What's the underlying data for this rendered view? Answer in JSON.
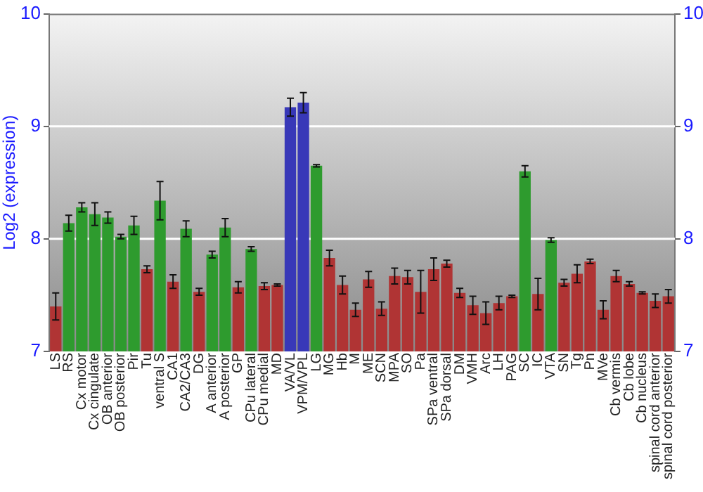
{
  "chart_data": {
    "type": "bar",
    "ylabel": "Log2 (expression)",
    "categories": [
      "LS",
      "RS",
      "Cx motor",
      "Cx cingulate",
      "OB anterior",
      "OB posterior",
      "Pir",
      "Tu",
      "ventral S",
      "CA1",
      "CA2/CA3",
      "DG",
      "A anterior",
      "A posterior",
      "GP",
      "CPu lateral",
      "CPu medial",
      "MD",
      "VA/VL",
      "VPM/VPL",
      "LG",
      "MG",
      "Hb",
      "M",
      "ME",
      "SCN",
      "MPA",
      "SO",
      "Pa",
      "SPa ventral",
      "SPa dorsal",
      "DM",
      "VMH",
      "Arc",
      "LH",
      "PAG",
      "SC",
      "IC",
      "VTA",
      "SN",
      "Tg",
      "Pn",
      "MVe",
      "Cb vermis",
      "Cb lobe",
      "Cb nucleus",
      "spinal cord anterior",
      "spinal cord posterior"
    ],
    "values": [
      7.4,
      8.14,
      8.28,
      8.22,
      8.19,
      8.02,
      8.12,
      7.73,
      8.34,
      7.62,
      8.09,
      7.53,
      7.86,
      8.1,
      7.57,
      7.91,
      7.58,
      7.59,
      9.17,
      9.21,
      8.65,
      7.83,
      7.59,
      7.37,
      7.64,
      7.38,
      7.67,
      7.66,
      7.53,
      7.73,
      7.78,
      7.52,
      7.41,
      7.34,
      7.43,
      7.49,
      8.6,
      7.51,
      7.99,
      7.61,
      7.69,
      7.8,
      7.37,
      7.67,
      7.6,
      7.52,
      7.45,
      7.49
    ],
    "errors": [
      0.12,
      0.07,
      0.04,
      0.1,
      0.05,
      0.02,
      0.08,
      0.03,
      0.17,
      0.06,
      0.07,
      0.03,
      0.03,
      0.08,
      0.05,
      0.02,
      0.03,
      0.01,
      0.08,
      0.09,
      0.01,
      0.07,
      0.08,
      0.06,
      0.07,
      0.06,
      0.07,
      0.06,
      0.19,
      0.1,
      0.03,
      0.04,
      0.08,
      0.1,
      0.06,
      0.01,
      0.05,
      0.14,
      0.02,
      0.03,
      0.08,
      0.02,
      0.08,
      0.05,
      0.02,
      0.01,
      0.06,
      0.06
    ],
    "colors": [
      "#b03434",
      "#2e9b2e",
      "#2e9b2e",
      "#2e9b2e",
      "#2e9b2e",
      "#2e9b2e",
      "#2e9b2e",
      "#b03434",
      "#2e9b2e",
      "#b03434",
      "#2e9b2e",
      "#b03434",
      "#2e9b2e",
      "#2e9b2e",
      "#b03434",
      "#2e9b2e",
      "#b03434",
      "#b03434",
      "#3838b8",
      "#3838b8",
      "#2e9b2e",
      "#b03434",
      "#b03434",
      "#b03434",
      "#b03434",
      "#b03434",
      "#b03434",
      "#b03434",
      "#b03434",
      "#b03434",
      "#b03434",
      "#b03434",
      "#b03434",
      "#b03434",
      "#b03434",
      "#b03434",
      "#2e9b2e",
      "#b03434",
      "#2e9b2e",
      "#b03434",
      "#b03434",
      "#b03434",
      "#b03434",
      "#b03434",
      "#b03434",
      "#b03434",
      "#b03434",
      "#b03434"
    ],
    "ylim": [
      7,
      10
    ],
    "yticks": [
      7,
      8,
      9,
      10
    ],
    "y2lim": [
      7,
      10
    ],
    "y2ticks": [
      7,
      8,
      9,
      10
    ],
    "grid": "y"
  }
}
